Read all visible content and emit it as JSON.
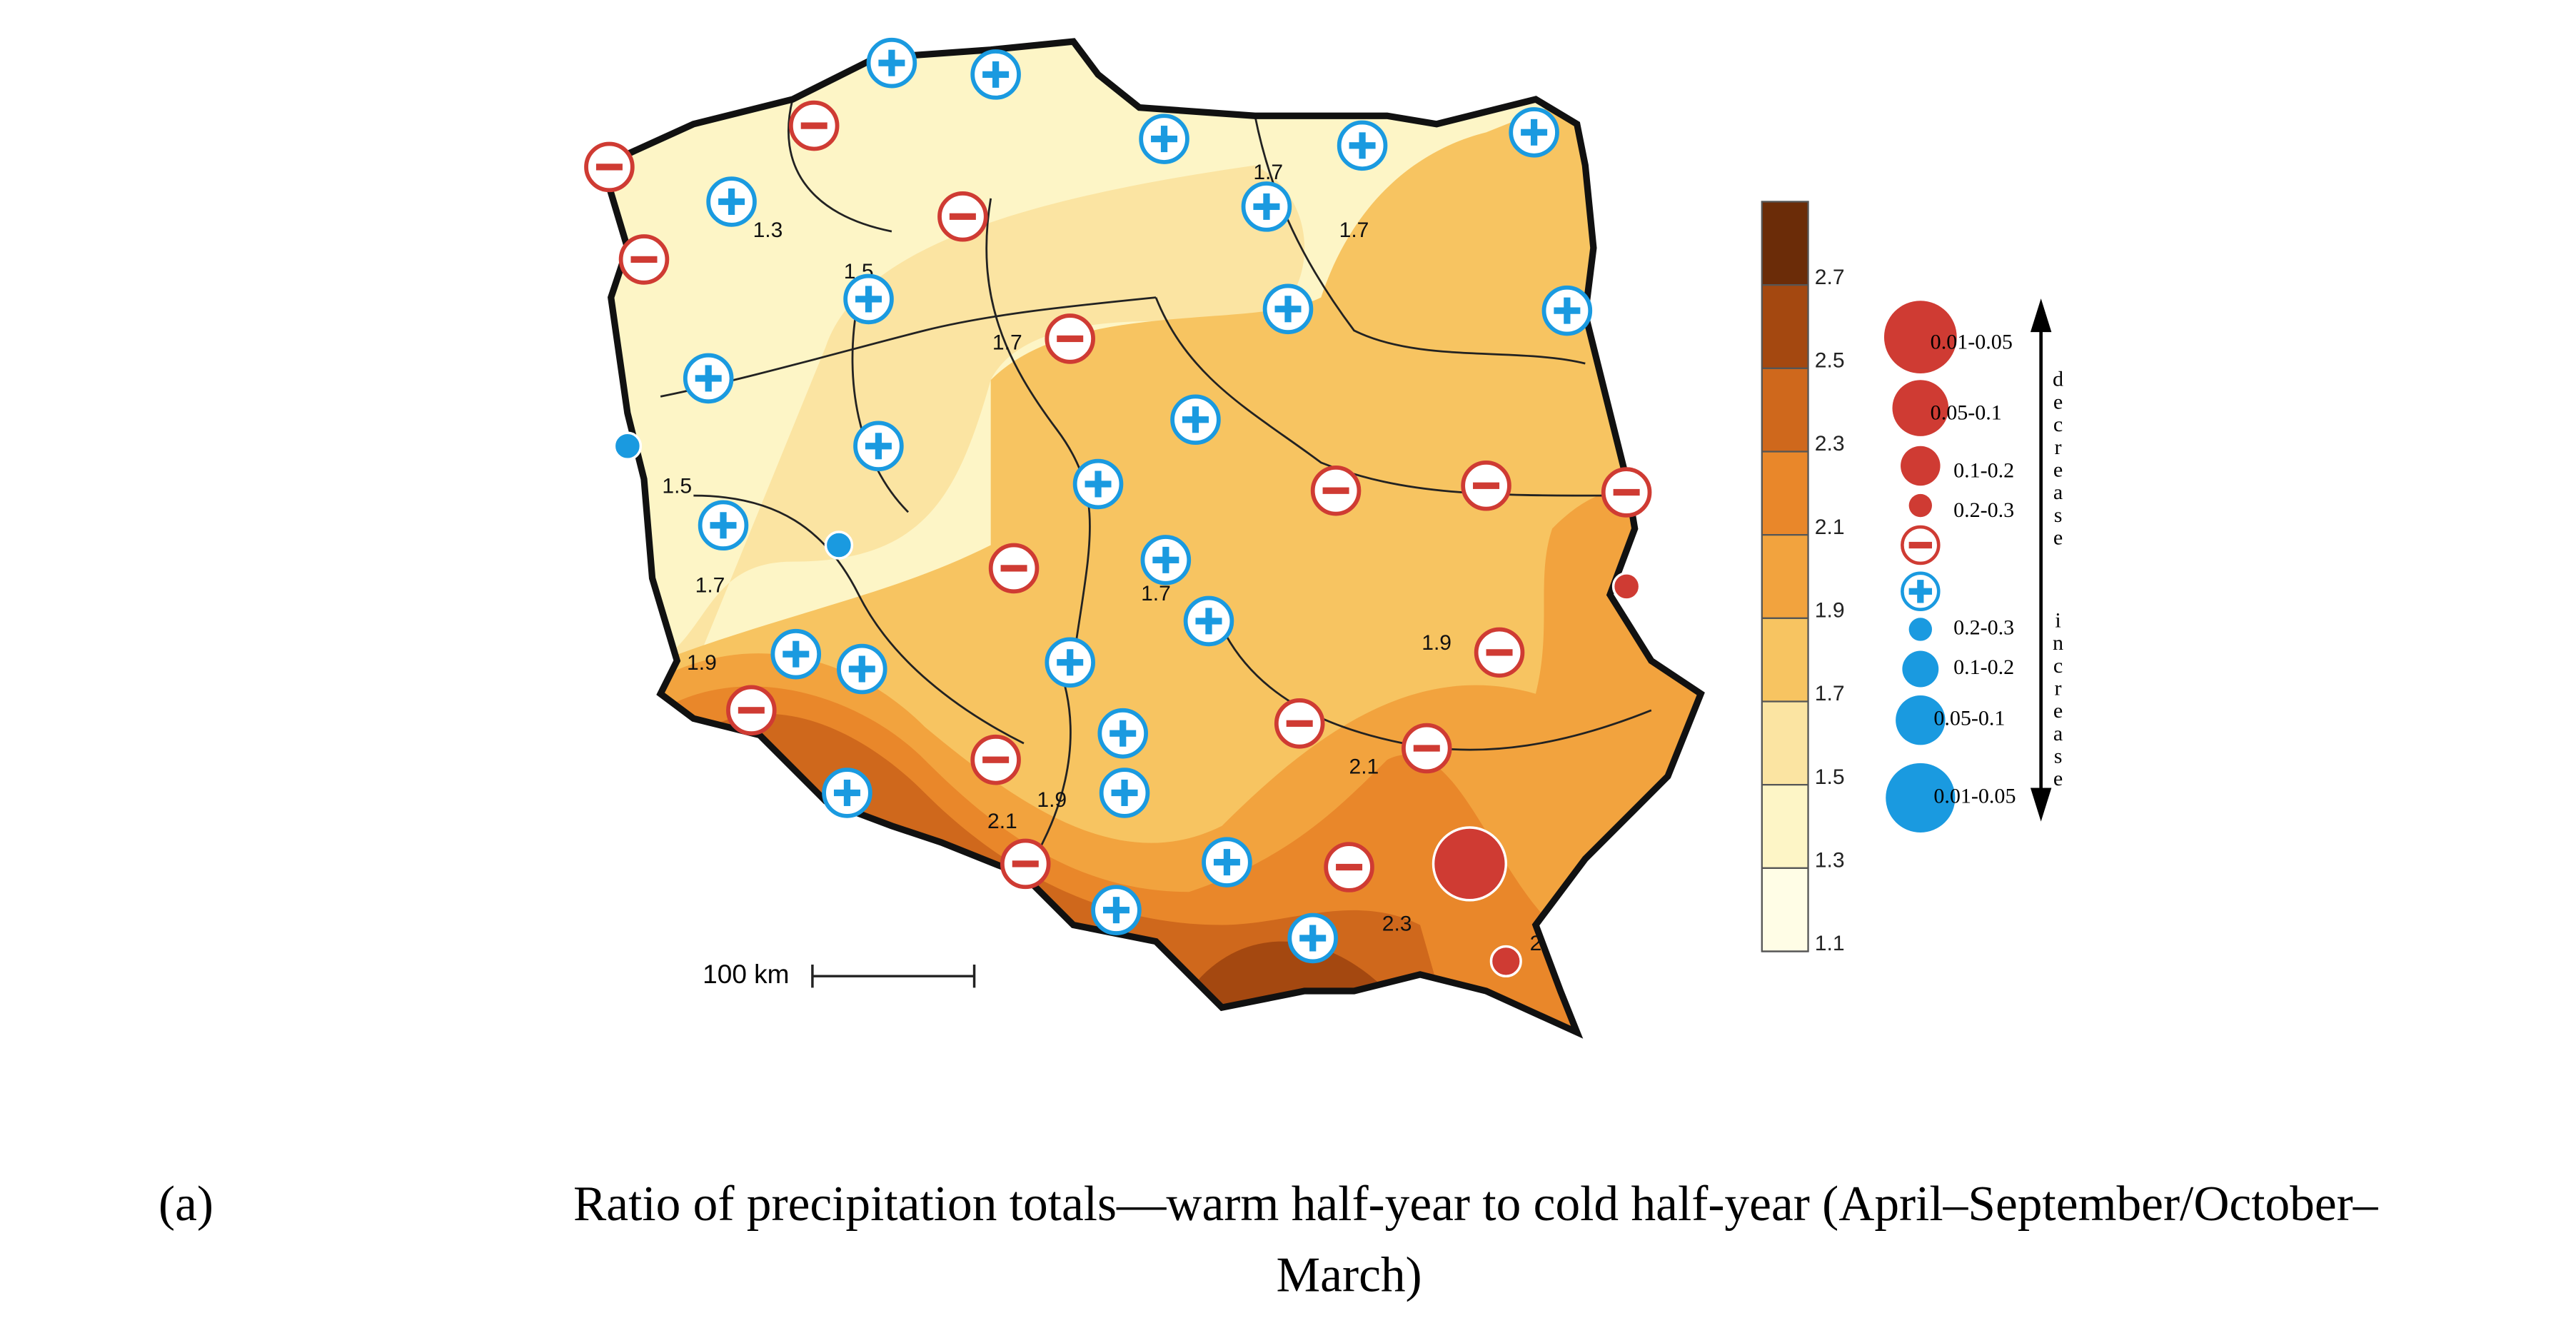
{
  "map": {
    "contour_labels": [
      "1.3",
      "1.5",
      "1.7",
      "1.7",
      "1.7",
      "1.5",
      "1.7",
      "1.9",
      "1.7",
      "1.9",
      "2.1",
      "1.9",
      "2.1",
      "2.3",
      "2"
    ],
    "scale_bar": "100 km",
    "colorbar": {
      "ylim": [
        1.1,
        2.9
      ],
      "ticks": [
        1.1,
        1.3,
        1.5,
        1.7,
        1.9,
        2.1,
        2.3,
        2.5,
        2.7
      ],
      "colors": [
        "#fffde6",
        "#fdf5c6",
        "#fbe4a2",
        "#f7c461",
        "#f2a33e",
        "#e9872a",
        "#cf681c",
        "#a44810",
        "#6b2c08"
      ]
    },
    "significance_legend": {
      "decrease": {
        "label": "decrease",
        "levels": [
          "0.01-0.05",
          "0.05-0.1",
          "0.1-0.2",
          "0.2-0.3"
        ],
        "color": "#cf3b33"
      },
      "increase": {
        "label": "increase",
        "levels": [
          "0.2-0.3",
          "0.1-0.2",
          "0.05-0.1",
          "0.01-0.05"
        ],
        "color": "#1a9ae0"
      }
    }
  },
  "caption": {
    "label": "(a)",
    "lines": [
      "Ratio of precipitation totals—warm half-year to cold half-year (April–September/October–",
      "March)"
    ]
  }
}
